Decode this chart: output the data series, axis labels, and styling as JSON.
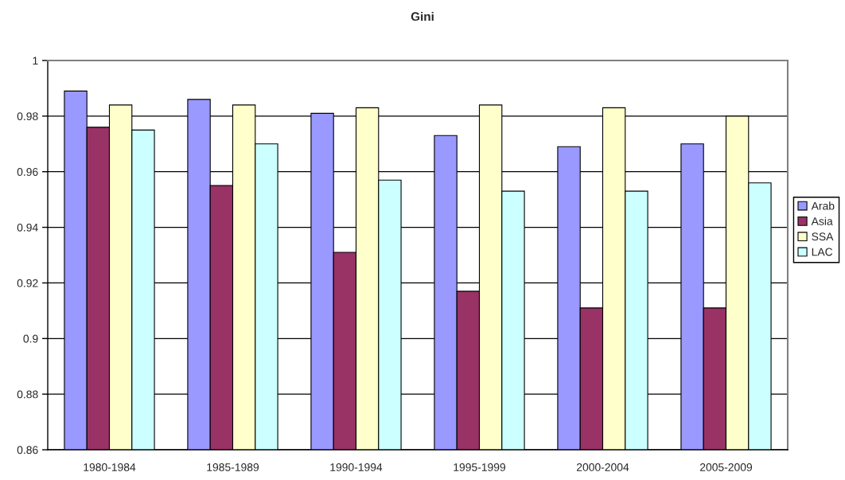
{
  "chart_data": {
    "type": "bar",
    "title": "Gini",
    "categories": [
      "1980-1984",
      "1985-1989",
      "1990-1994",
      "1995-1999",
      "2000-2004",
      "2005-2009"
    ],
    "series": [
      {
        "name": "Arab",
        "color": "#9999ff",
        "values": [
          0.989,
          0.986,
          0.981,
          0.973,
          0.969,
          0.97
        ]
      },
      {
        "name": "Asia",
        "color": "#993366",
        "values": [
          0.976,
          0.955,
          0.931,
          0.917,
          0.911,
          0.911
        ]
      },
      {
        "name": "SSA",
        "color": "#ffffcc",
        "values": [
          0.984,
          0.984,
          0.983,
          0.984,
          0.983,
          0.98
        ]
      },
      {
        "name": "LAC",
        "color": "#ccffff",
        "values": [
          0.975,
          0.97,
          0.957,
          0.953,
          0.953,
          0.956
        ]
      }
    ],
    "ylim": [
      0.86,
      1
    ],
    "yticks": [
      0.86,
      0.88,
      0.9,
      0.92,
      0.94,
      0.96,
      0.98,
      1
    ],
    "grid": "y",
    "legend": "right"
  }
}
